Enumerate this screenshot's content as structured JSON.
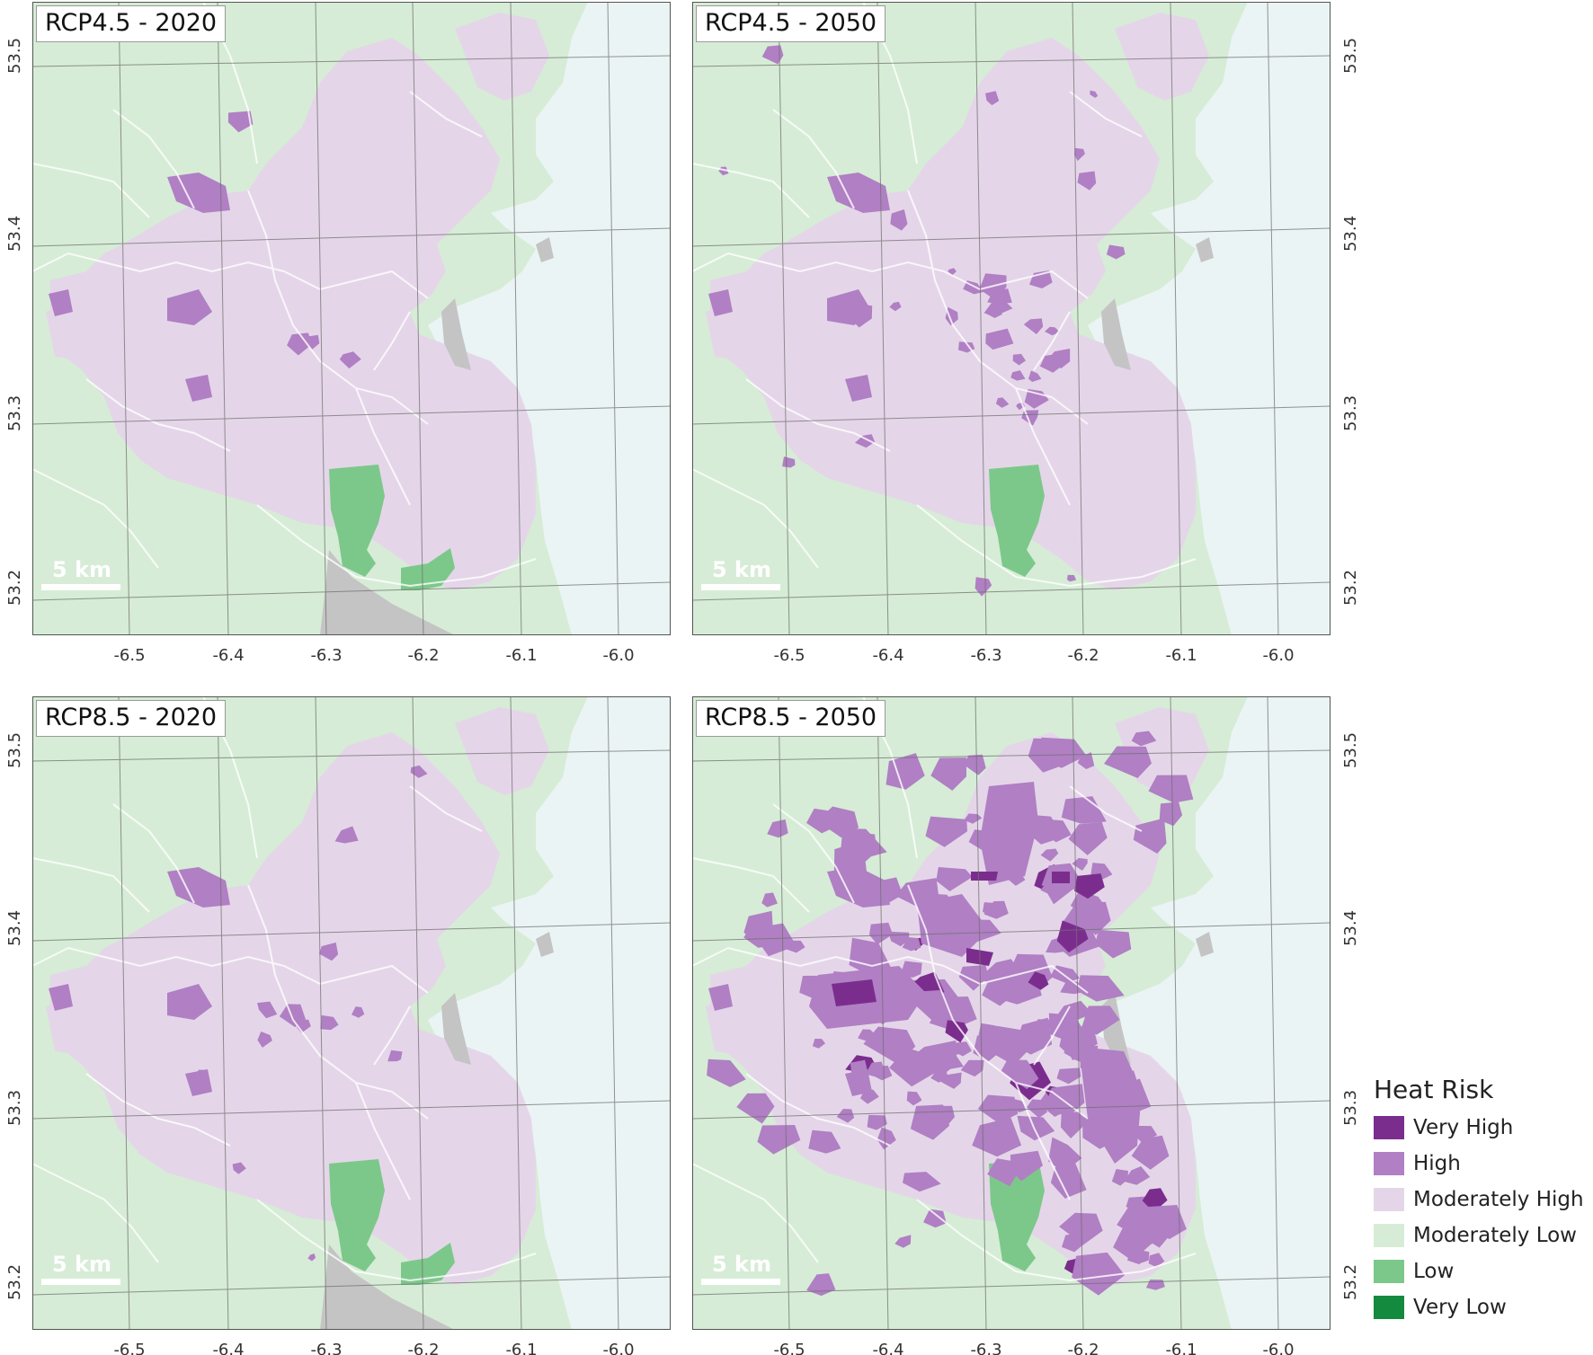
{
  "panels": [
    {
      "title": "RCP4.5 - 2020",
      "scenario": "RCP4.5",
      "year": 2020,
      "high_level": "low",
      "show_south_park": true,
      "scale_label": "5 km"
    },
    {
      "title": "RCP4.5 - 2050",
      "scenario": "RCP4.5",
      "year": 2050,
      "high_level": "mid",
      "show_south_park": false,
      "scale_label": "5 km"
    },
    {
      "title": "RCP8.5 - 2020",
      "scenario": "RCP8.5",
      "year": 2020,
      "high_level": "low",
      "show_south_park": true,
      "scale_label": "5 km"
    },
    {
      "title": "RCP8.5 - 2050",
      "scenario": "RCP8.5",
      "year": 2050,
      "high_level": "high",
      "show_south_park": false,
      "scale_label": "5 km"
    }
  ],
  "axes": {
    "longitude_ticks": [
      "-6.5",
      "-6.4",
      "-6.3",
      "-6.2",
      "-6.1",
      "-6.0"
    ],
    "latitude_ticks": [
      "53.5",
      "53.4",
      "53.3",
      "53.2"
    ]
  },
  "legend": {
    "title": "Heat Risk",
    "items": [
      {
        "label": "Very High",
        "color": "#7b2d8e"
      },
      {
        "label": "High",
        "color": "#b07fc4"
      },
      {
        "label": "Moderately High",
        "color": "#e4d6e8"
      },
      {
        "label": "Moderately Low",
        "color": "#d6ecd6"
      },
      {
        "label": "Low",
        "color": "#7cc88a"
      },
      {
        "label": "Very Low",
        "color": "#138a3e"
      }
    ]
  },
  "colors": {
    "sea": "#ebf4f4",
    "land_base": "#d6ecd6",
    "no_data": "#c4c4c4",
    "boundary": "#ffffff",
    "graticule": "#707070"
  }
}
